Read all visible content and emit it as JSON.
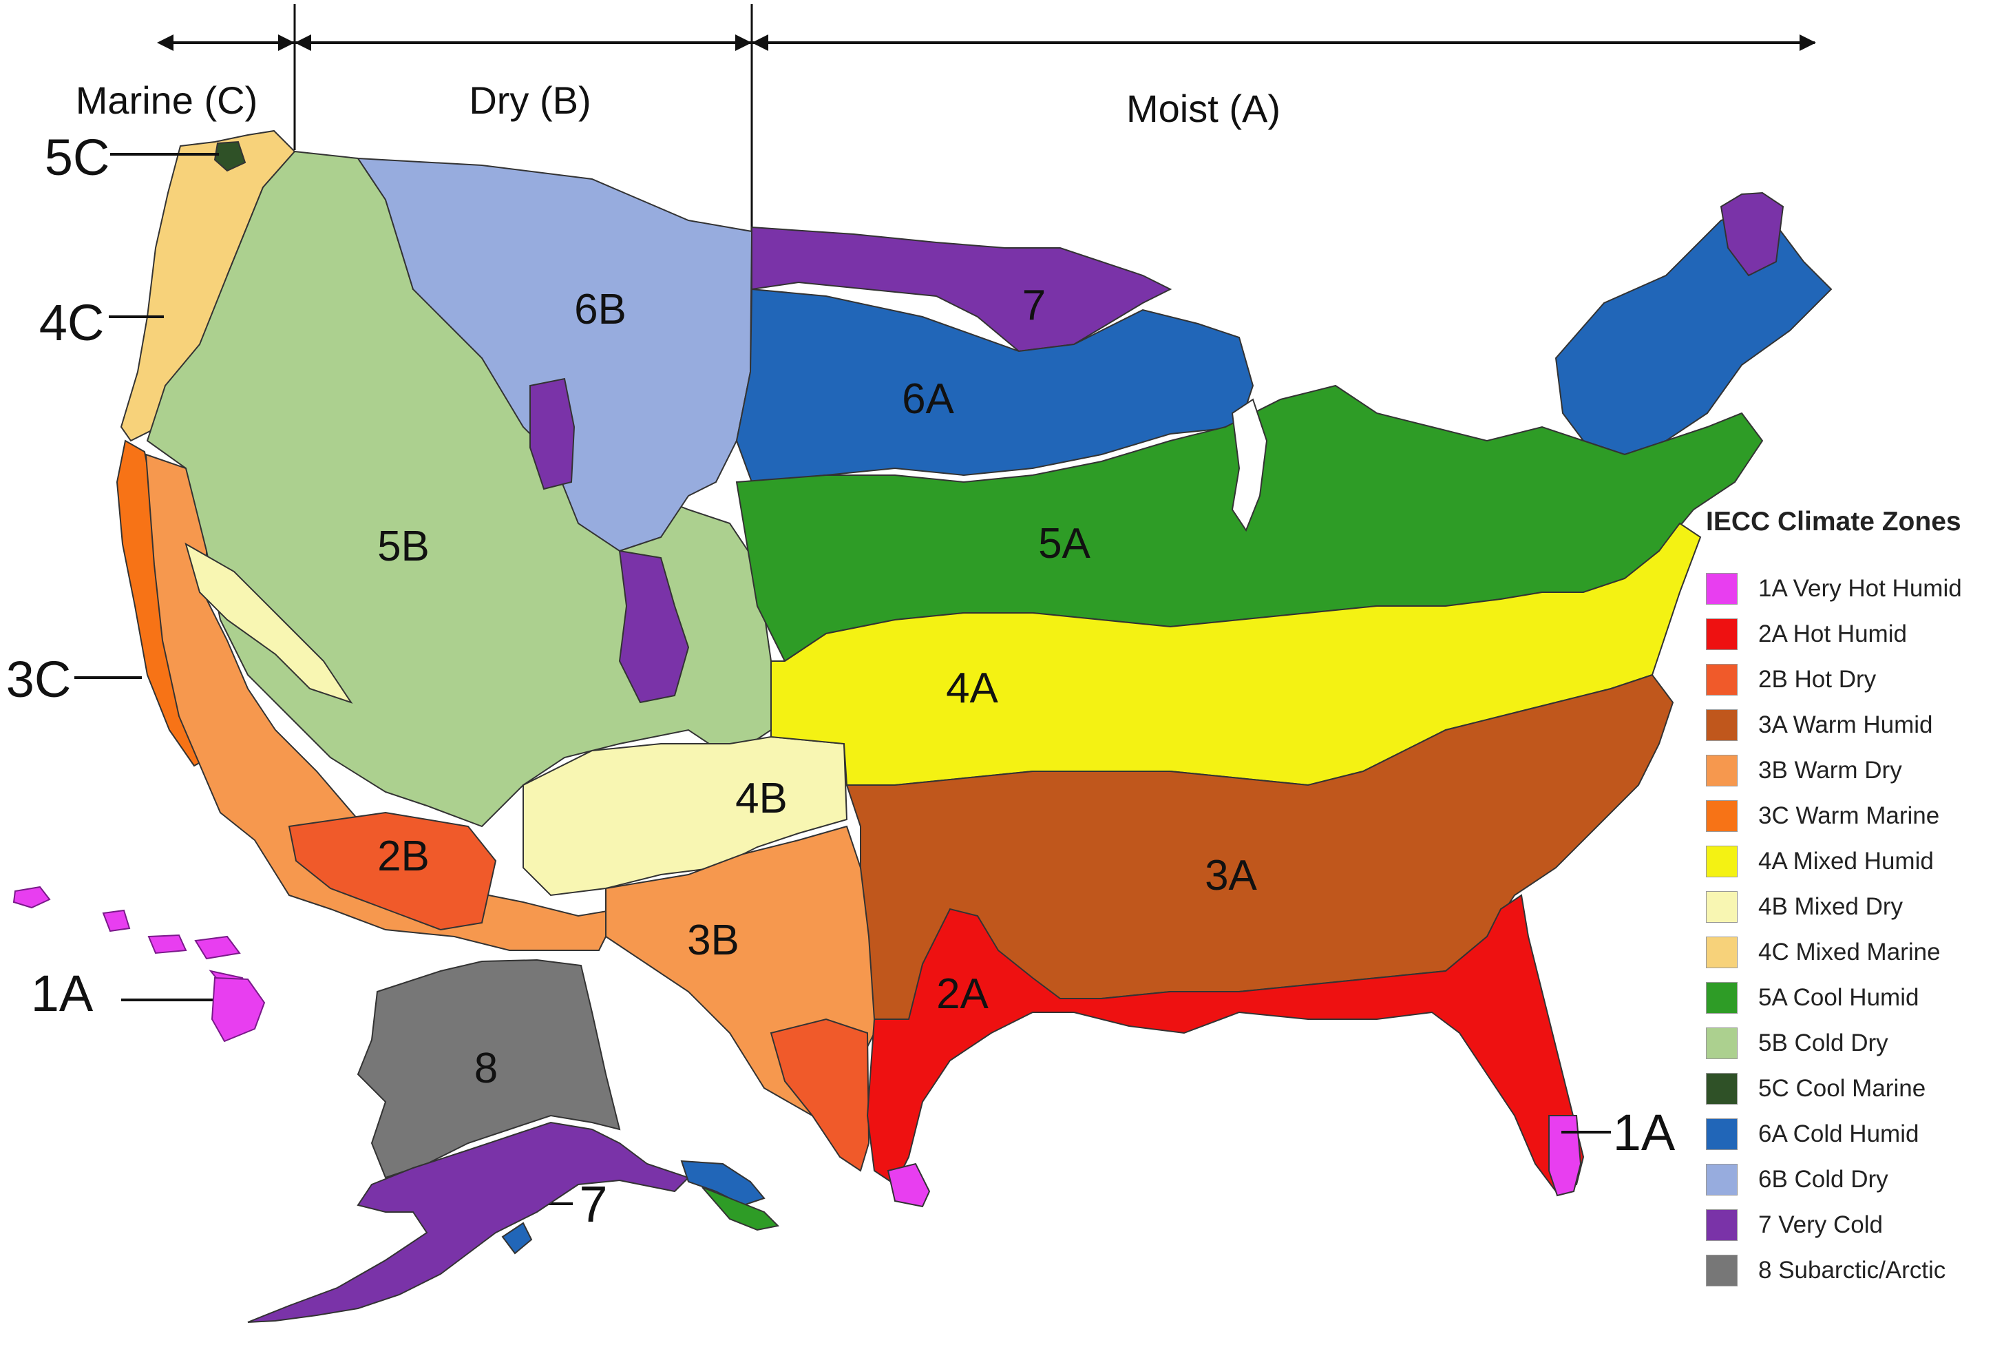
{
  "headers": {
    "marine": "Marine (C)",
    "dry": "Dry (B)",
    "moist": "Moist (A)"
  },
  "map_labels": {
    "z5C": "5C",
    "z4C": "4C",
    "z3C": "3C",
    "z1A_hawaii": "1A",
    "z6B": "6B",
    "z5B": "5B",
    "z4B": "4B",
    "z3B": "3B",
    "z2B": "2B",
    "z7_mn": "7",
    "z6A": "6A",
    "z5A": "5A",
    "z4A": "4A",
    "z3A": "3A",
    "z2A": "2A",
    "z1A_florida": "1A",
    "z8": "8",
    "z7_alaska": "7"
  },
  "legend": {
    "title": "IECC Climate Zones",
    "items": [
      {
        "label": "1A Very Hot Humid",
        "color": "#e83ef0"
      },
      {
        "label": "2A Hot Humid",
        "color": "#ee1111"
      },
      {
        "label": "2B Hot Dry",
        "color": "#f05a2a"
      },
      {
        "label": "3A Warm Humid",
        "color": "#c0571c"
      },
      {
        "label": "3B Warm Dry",
        "color": "#f6984e"
      },
      {
        "label": "3C Warm Marine",
        "color": "#f77316"
      },
      {
        "label": "4A Mixed Humid",
        "color": "#f4f213"
      },
      {
        "label": "4B Mixed Dry",
        "color": "#f8f6b2"
      },
      {
        "label": "4C Mixed Marine",
        "color": "#f7d27a"
      },
      {
        "label": "5A Cool Humid",
        "color": "#2e9c26"
      },
      {
        "label": "5B Cold Dry",
        "color": "#acd08f"
      },
      {
        "label": "5C Cool Marine",
        "color": "#2f5127"
      },
      {
        "label": "6A Cold Humid",
        "color": "#2166b8"
      },
      {
        "label": "6B Cold Dry",
        "color": "#97acde"
      },
      {
        "label": "7 Very Cold",
        "color": "#7a33a8"
      },
      {
        "label": "8 Subarctic/Arctic",
        "color": "#777777"
      }
    ]
  }
}
